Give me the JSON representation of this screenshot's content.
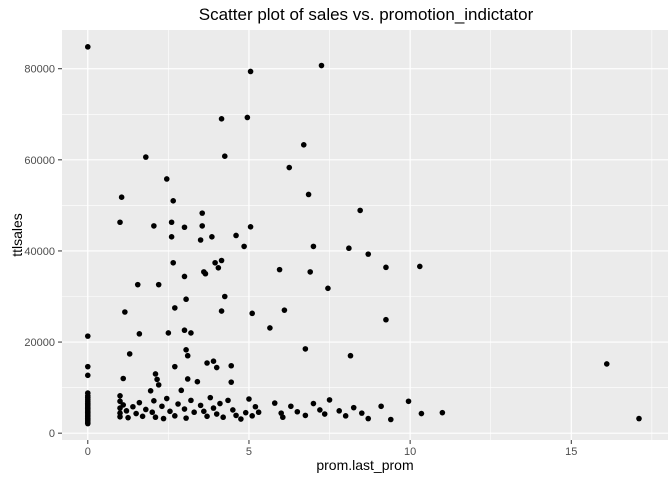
{
  "chart_data": {
    "type": "scatter",
    "title": "Scatter plot of sales vs. promotion_indictator",
    "xlabel": "prom.last_prom",
    "ylabel": "ttlsales",
    "xlim": [
      -0.8,
      18.0
    ],
    "ylim": [
      -1500,
      88500
    ],
    "x_ticks": [
      0,
      5,
      10,
      15
    ],
    "x_minor": [
      2.5,
      7.5,
      12.5,
      17.5
    ],
    "y_ticks": [
      0,
      20000,
      40000,
      60000,
      80000
    ],
    "y_minor": [
      10000,
      30000,
      50000,
      70000
    ],
    "x_tick_labels": [
      "0",
      "5",
      "10",
      "15"
    ],
    "y_tick_labels": [
      "0",
      "20000",
      "40000",
      "60000",
      "80000"
    ],
    "grid": true,
    "panel_color": "#ebebeb",
    "grid_color": "#ffffff",
    "point_color": "#000000",
    "points": [
      [
        0,
        84800
      ],
      [
        0,
        21300
      ],
      [
        0,
        14600
      ],
      [
        0,
        12700
      ],
      [
        0,
        8800
      ],
      [
        0,
        8200
      ],
      [
        0,
        7800
      ],
      [
        0,
        7400
      ],
      [
        0,
        7000
      ],
      [
        0,
        6600
      ],
      [
        0,
        6300
      ],
      [
        0,
        6000
      ],
      [
        0,
        5700
      ],
      [
        0,
        5400
      ],
      [
        0,
        5100
      ],
      [
        0,
        4800
      ],
      [
        0,
        4500
      ],
      [
        0,
        4200
      ],
      [
        0,
        3900
      ],
      [
        0,
        3600
      ],
      [
        0,
        3300
      ],
      [
        0,
        3000
      ],
      [
        0,
        2700
      ],
      [
        0,
        2400
      ],
      [
        0,
        2100
      ],
      [
        1.0,
        46300
      ],
      [
        1.05,
        51800
      ],
      [
        1.1,
        12000
      ],
      [
        1.15,
        26600
      ],
      [
        1.3,
        17400
      ],
      [
        1.55,
        32600
      ],
      [
        1.6,
        21800
      ],
      [
        1.8,
        60600
      ],
      [
        2.05,
        45500
      ],
      [
        2.1,
        13000
      ],
      [
        2.15,
        11800
      ],
      [
        2.2,
        32600
      ],
      [
        2.45,
        55800
      ],
      [
        2.5,
        22000
      ],
      [
        2.6,
        46300
      ],
      [
        2.6,
        43100
      ],
      [
        2.65,
        51000
      ],
      [
        2.65,
        37400
      ],
      [
        2.7,
        27500
      ],
      [
        2.7,
        14600
      ],
      [
        3.0,
        45200
      ],
      [
        3.0,
        34400
      ],
      [
        3.0,
        22600
      ],
      [
        3.05,
        29400
      ],
      [
        3.05,
        18300
      ],
      [
        3.1,
        17000
      ],
      [
        3.2,
        22000
      ],
      [
        3.5,
        42400
      ],
      [
        3.55,
        45500
      ],
      [
        3.55,
        48300
      ],
      [
        3.6,
        35400
      ],
      [
        3.65,
        35000
      ],
      [
        3.7,
        15400
      ],
      [
        3.85,
        43100
      ],
      [
        3.9,
        15800
      ],
      [
        3.95,
        37400
      ],
      [
        4.0,
        14400
      ],
      [
        4.05,
        36300
      ],
      [
        4.15,
        69000
      ],
      [
        4.15,
        37900
      ],
      [
        4.15,
        26800
      ],
      [
        4.25,
        60800
      ],
      [
        4.25,
        30000
      ],
      [
        4.45,
        11200
      ],
      [
        4.45,
        14800
      ],
      [
        4.6,
        43400
      ],
      [
        4.85,
        41000
      ],
      [
        4.95,
        69300
      ],
      [
        5.05,
        79400
      ],
      [
        5.05,
        45300
      ],
      [
        5.1,
        26300
      ],
      [
        5.65,
        23100
      ],
      [
        5.95,
        35900
      ],
      [
        6.1,
        27000
      ],
      [
        6.25,
        58300
      ],
      [
        6.7,
        63300
      ],
      [
        6.75,
        18500
      ],
      [
        6.85,
        52400
      ],
      [
        6.9,
        35400
      ],
      [
        7.0,
        41000
      ],
      [
        7.25,
        80700
      ],
      [
        7.45,
        31800
      ],
      [
        8.1,
        40600
      ],
      [
        8.15,
        17000
      ],
      [
        8.45,
        48900
      ],
      [
        8.7,
        39300
      ],
      [
        9.25,
        36400
      ],
      [
        9.25,
        24900
      ],
      [
        10.3,
        36600
      ],
      [
        1.0,
        8200
      ],
      [
        1.0,
        7000
      ],
      [
        1.0,
        5500
      ],
      [
        1.0,
        4400
      ],
      [
        1.0,
        3600
      ],
      [
        1.1,
        6200
      ],
      [
        1.2,
        4900
      ],
      [
        1.25,
        3400
      ],
      [
        1.4,
        5800
      ],
      [
        1.5,
        4300
      ],
      [
        1.6,
        6700
      ],
      [
        1.7,
        3700
      ],
      [
        1.8,
        5200
      ],
      [
        1.95,
        9300
      ],
      [
        2.0,
        4600
      ],
      [
        2.05,
        7100
      ],
      [
        2.1,
        3500
      ],
      [
        2.2,
        10600
      ],
      [
        2.3,
        5900
      ],
      [
        2.35,
        3200
      ],
      [
        2.45,
        7600
      ],
      [
        2.55,
        4800
      ],
      [
        2.7,
        3800
      ],
      [
        2.8,
        6400
      ],
      [
        2.9,
        9400
      ],
      [
        3.0,
        5300
      ],
      [
        3.05,
        3300
      ],
      [
        3.1,
        11900
      ],
      [
        3.2,
        7200
      ],
      [
        3.3,
        4600
      ],
      [
        3.4,
        11300
      ],
      [
        3.5,
        6100
      ],
      [
        3.6,
        4800
      ],
      [
        3.7,
        3700
      ],
      [
        3.8,
        7800
      ],
      [
        3.9,
        5500
      ],
      [
        4.0,
        4200
      ],
      [
        4.1,
        6500
      ],
      [
        4.2,
        3500
      ],
      [
        4.35,
        7200
      ],
      [
        4.5,
        5100
      ],
      [
        4.6,
        3900
      ],
      [
        4.75,
        3100
      ],
      [
        4.9,
        4500
      ],
      [
        5.0,
        7500
      ],
      [
        5.1,
        3800
      ],
      [
        5.2,
        5800
      ],
      [
        5.3,
        4600
      ],
      [
        5.8,
        6600
      ],
      [
        6.0,
        4400
      ],
      [
        6.05,
        3500
      ],
      [
        6.3,
        5900
      ],
      [
        6.5,
        4700
      ],
      [
        6.75,
        3900
      ],
      [
        7.0,
        6500
      ],
      [
        7.2,
        5100
      ],
      [
        7.35,
        4200
      ],
      [
        7.5,
        7300
      ],
      [
        7.8,
        4900
      ],
      [
        8.0,
        3800
      ],
      [
        8.25,
        5600
      ],
      [
        8.5,
        4400
      ],
      [
        8.7,
        3200
      ],
      [
        9.1,
        5900
      ],
      [
        9.4,
        3000
      ],
      [
        9.95,
        7000
      ],
      [
        10.35,
        4300
      ],
      [
        11.0,
        4500
      ],
      [
        16.1,
        15200
      ],
      [
        17.1,
        3200
      ]
    ]
  }
}
